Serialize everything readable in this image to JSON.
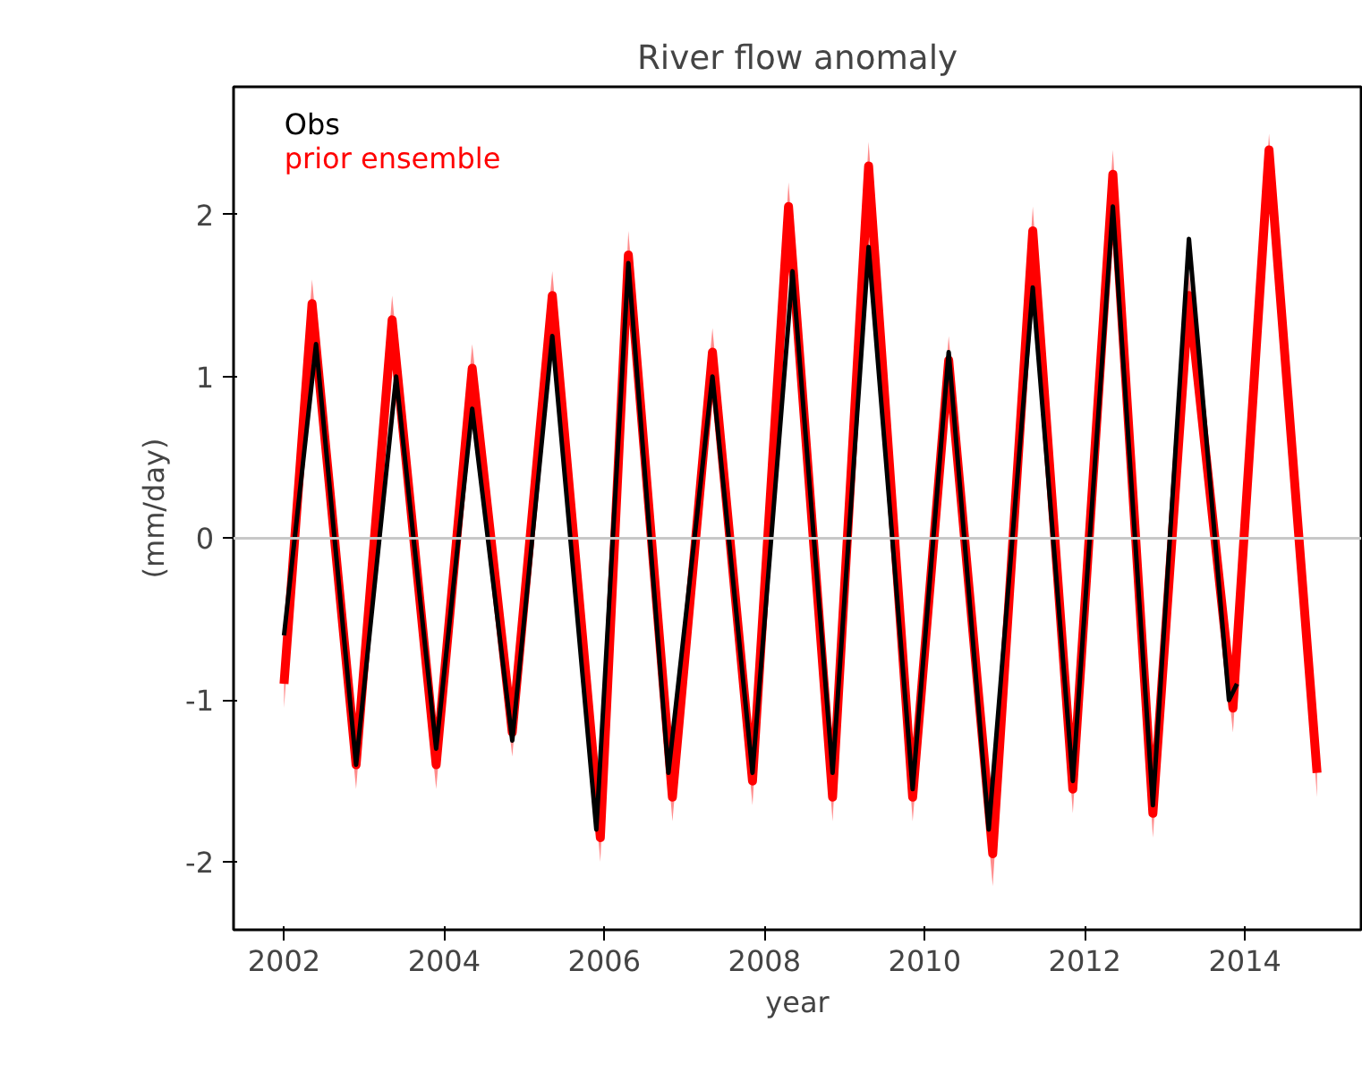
{
  "chart_data": {
    "type": "line",
    "title": "River flow anomaly",
    "xlabel": "year",
    "ylabel": "(mm/day)",
    "xlim": [
      2001.37,
      2015.45
    ],
    "ylim": [
      -2.42,
      2.79
    ],
    "xticks": [
      2002,
      2004,
      2006,
      2008,
      2010,
      2012,
      2014
    ],
    "yticks": [
      -2,
      -1,
      0,
      1,
      2
    ],
    "grid": false,
    "marker": "none",
    "line_style": "solid",
    "ref_lines": [
      {
        "axis": "y",
        "value": 0,
        "color": "#c8c8c8"
      }
    ],
    "series": [
      {
        "name": "prior ensemble",
        "color": "#ff0000",
        "x": [
          2002.0,
          2002.35,
          2002.9,
          2003.35,
          2003.9,
          2004.35,
          2004.85,
          2005.35,
          2005.95,
          2006.3,
          2006.85,
          2007.35,
          2007.85,
          2008.3,
          2008.85,
          2009.3,
          2009.85,
          2010.3,
          2010.85,
          2011.35,
          2011.85,
          2012.35,
          2012.85,
          2013.3,
          2013.85,
          2014.3,
          2014.9
        ],
        "values": [
          -0.9,
          1.45,
          -1.4,
          1.35,
          -1.4,
          1.05,
          -1.2,
          1.5,
          -1.85,
          1.75,
          -1.6,
          1.15,
          -1.5,
          2.05,
          -1.6,
          2.3,
          -1.6,
          1.1,
          -1.95,
          1.9,
          -1.55,
          2.25,
          -1.7,
          1.5,
          -1.05,
          2.4,
          -1.45
        ],
        "lower": [
          -1.05,
          1.3,
          -1.55,
          1.2,
          -1.55,
          0.9,
          -1.35,
          1.35,
          -2.0,
          1.6,
          -1.75,
          1.0,
          -1.65,
          1.85,
          -1.75,
          2.1,
          -1.75,
          0.95,
          -2.15,
          1.75,
          -1.7,
          2.1,
          -1.85,
          1.35,
          -1.2,
          2.25,
          -1.6
        ],
        "upper": [
          -0.7,
          1.6,
          -1.25,
          1.5,
          -1.25,
          1.2,
          -1.05,
          1.65,
          -1.7,
          1.9,
          -1.45,
          1.3,
          -1.35,
          2.2,
          -1.45,
          2.45,
          -1.45,
          1.25,
          -1.8,
          2.05,
          -1.4,
          2.4,
          -1.55,
          1.65,
          -0.9,
          2.5,
          -1.3
        ]
      },
      {
        "name": "Obs",
        "color": "#000000",
        "x": [
          2002.0,
          2002.4,
          2002.9,
          2003.4,
          2003.9,
          2004.35,
          2004.85,
          2005.35,
          2005.9,
          2006.3,
          2006.8,
          2007.35,
          2007.85,
          2008.35,
          2008.85,
          2009.3,
          2009.85,
          2010.3,
          2010.8,
          2011.35,
          2011.85,
          2012.35,
          2012.85,
          2013.3,
          2013.8,
          2013.9
        ],
        "values": [
          -0.6,
          1.2,
          -1.4,
          1.0,
          -1.3,
          0.8,
          -1.25,
          1.25,
          -1.8,
          1.7,
          -1.45,
          1.0,
          -1.45,
          1.65,
          -1.45,
          1.8,
          -1.55,
          1.15,
          -1.8,
          1.55,
          -1.5,
          2.05,
          -1.65,
          1.85,
          -1.0,
          -0.9
        ]
      }
    ]
  }
}
